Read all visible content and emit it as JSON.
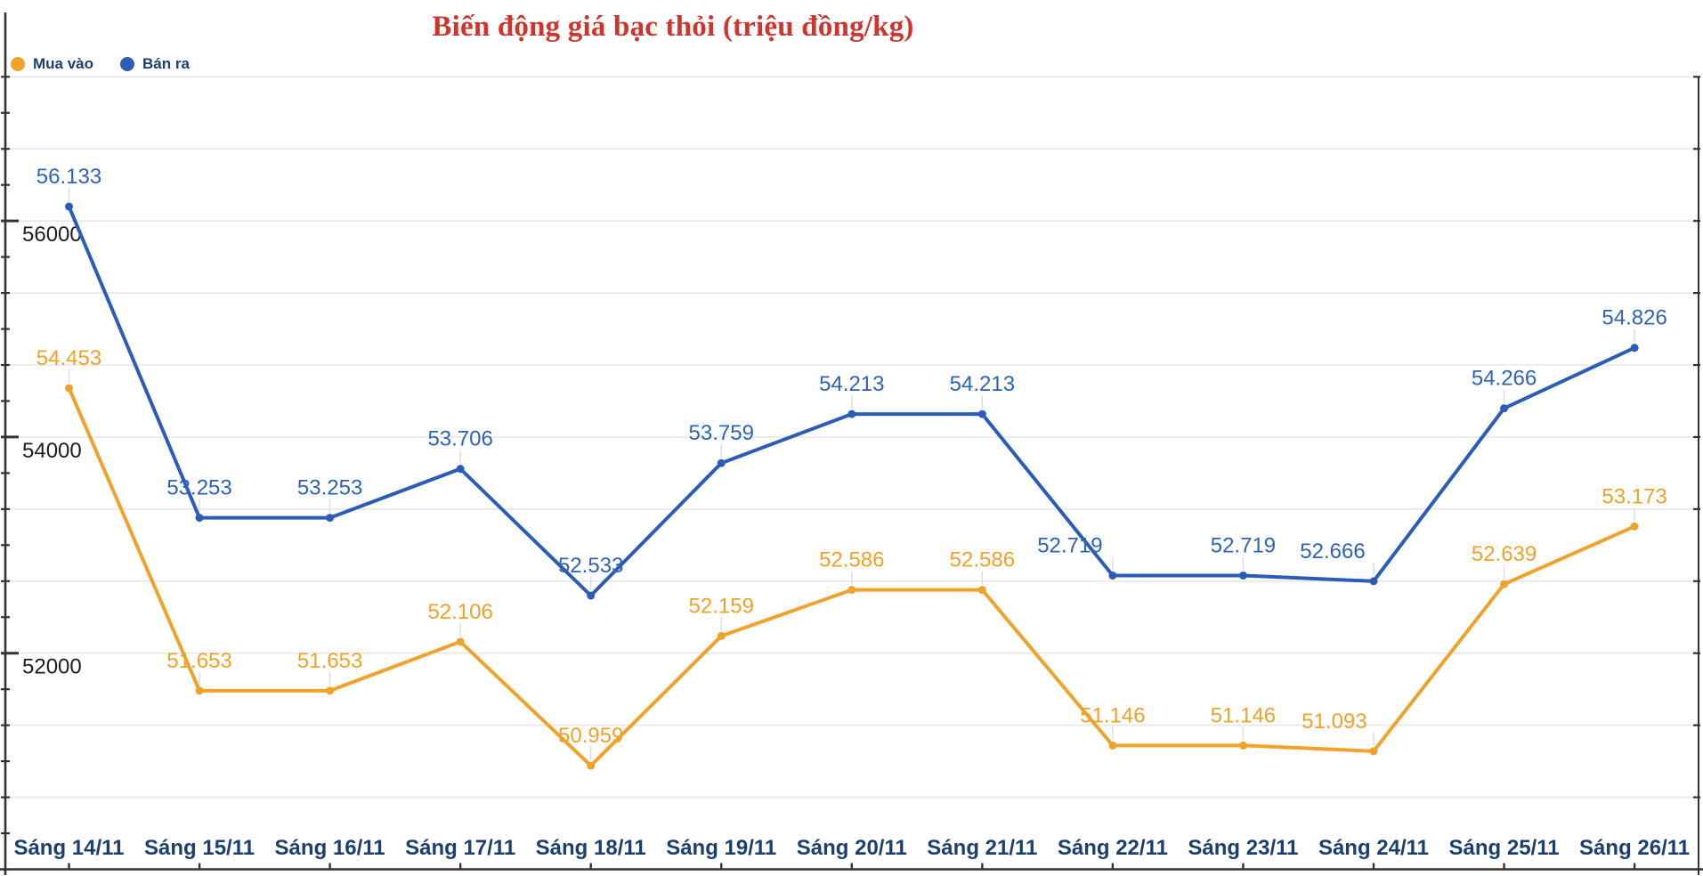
{
  "title": "Biến động giá bạc thỏi (triệu đồng/kg)",
  "legend": [
    {
      "label": "Mua vào",
      "color": "#efa32a"
    },
    {
      "label": "Bán ra",
      "color": "#2a5cb8"
    }
  ],
  "chart_data": {
    "type": "line",
    "title": "Biến động giá bạc thỏi (triệu đồng/kg)",
    "unit": "triệu đồng/kg",
    "categories": [
      "Sáng 14/11",
      "Sáng 15/11",
      "Sáng 16/11",
      "Sáng 17/11",
      "Sáng 18/11",
      "Sáng 19/11",
      "Sáng 20/11",
      "Sáng 21/11",
      "Sáng 22/11",
      "Sáng 23/11",
      "Sáng 24/11",
      "Sáng 25/11",
      "Sáng 26/11"
    ],
    "series": [
      {
        "name": "Mua vào",
        "color": "#efa32a",
        "label_color": "#efa227",
        "values": [
          54453,
          51653,
          51653,
          52106,
          50959,
          52159,
          52586,
          52586,
          51146,
          51146,
          51093,
          52639,
          53173
        ],
        "labels": [
          "54.453",
          "51.653",
          "51.653",
          "52.106",
          "50.959",
          "52.159",
          "52.586",
          "52.586",
          "51.146",
          "51.146",
          "51.093",
          "52.639",
          "53.173"
        ]
      },
      {
        "name": "Bán ra",
        "color": "#2a5cb8",
        "label_color": "#2e63b5",
        "values": [
          56133,
          53253,
          53253,
          53706,
          52533,
          53759,
          54213,
          54213,
          52719,
          52719,
          52666,
          54266,
          54826
        ],
        "labels": [
          "56.133",
          "53.253",
          "53.253",
          "53.706",
          "52.533",
          "53.759",
          "54.213",
          "54.213",
          "52.719",
          "52.719",
          "52.666",
          "54.266",
          "54.826"
        ]
      }
    ],
    "y_axis": {
      "min": 50000,
      "max": 57333.33,
      "gridline_step": 666.67,
      "tick_values": [
        52000,
        54000,
        56000
      ],
      "tick_labels": [
        "52000",
        "54000",
        "56000"
      ]
    },
    "legend_position": "top-left",
    "grid": true
  },
  "colors": {
    "title": "#d0342c",
    "axis": "#333333",
    "gridline": "#e7e7e7",
    "leader": "#dcdcdc",
    "x_label": "#1c3f6e",
    "y_label": "#1d1d1d"
  }
}
